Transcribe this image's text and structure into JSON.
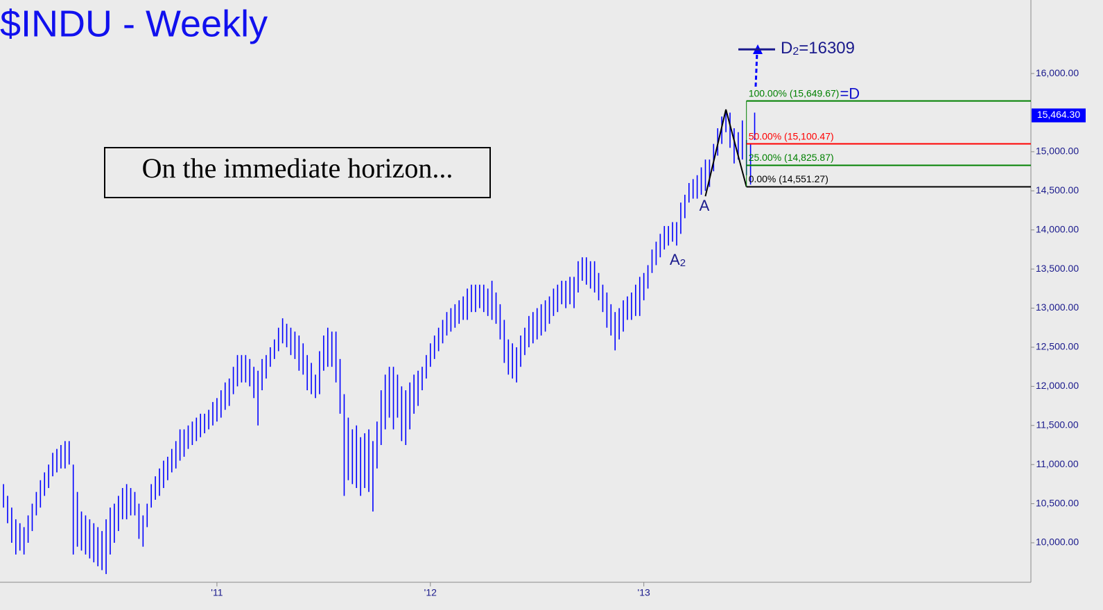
{
  "chart_data": {
    "type": "ohlc",
    "title": "$INDU - Weekly",
    "annotation": "On the immediate horizon...",
    "color": "#0000ff",
    "highs": [
      10750,
      10600,
      10450,
      10300,
      10250,
      10200,
      10350,
      10500,
      10650,
      10800,
      10900,
      11000,
      11150,
      11200,
      11250,
      11300,
      11300,
      11000,
      10650,
      10400,
      10350,
      10300,
      10250,
      10200,
      10150,
      10300,
      10450,
      10500,
      10600,
      10700,
      10750,
      10700,
      10650,
      10500,
      10350,
      10500,
      10750,
      10850,
      10950,
      11050,
      11100,
      11200,
      11300,
      11450,
      11450,
      11500,
      11550,
      11600,
      11650,
      11650,
      11700,
      11800,
      11850,
      11950,
      12050,
      12100,
      12250,
      12400,
      12400,
      12400,
      12350,
      12250,
      12200,
      12350,
      12400,
      12500,
      12600,
      12750,
      12870,
      12800,
      12750,
      12700,
      12650,
      12550,
      12400,
      12300,
      12150,
      12450,
      12650,
      12750,
      12700,
      12700,
      12350,
      11900,
      11600,
      11450,
      11500,
      11350,
      11400,
      11450,
      11300,
      11550,
      11950,
      12150,
      12250,
      12250,
      12150,
      12000,
      11950,
      12050,
      12150,
      12200,
      12250,
      12400,
      12550,
      12650,
      12750,
      12850,
      12950,
      13000,
      13050,
      13100,
      13150,
      13250,
      13300,
      13300,
      13300,
      13300,
      13250,
      13350,
      13200,
      13050,
      12850,
      12600,
      12550,
      12500,
      12650,
      12750,
      12900,
      12950,
      13000,
      13050,
      13100,
      13150,
      13250,
      13300,
      13350,
      13350,
      13400,
      13400,
      13600,
      13650,
      13650,
      13600,
      13600,
      13450,
      13300,
      13200,
      13050,
      12950,
      13000,
      13100,
      13150,
      13200,
      13300,
      13400,
      13450,
      13550,
      13750,
      13850,
      13950,
      14050,
      14050,
      14100,
      14100,
      14350,
      14450,
      14600,
      14650,
      14700,
      14800,
      14900,
      14900,
      15100,
      15300,
      15450,
      15540,
      15500,
      15300,
      15250,
      15400,
      15150,
      15100,
      15500
    ],
    "lows": [
      10450,
      10250,
      10000,
      9850,
      9900,
      9850,
      10000,
      10150,
      10350,
      10450,
      10600,
      10700,
      10850,
      10900,
      10950,
      10950,
      11000,
      9850,
      9950,
      9900,
      9850,
      9800,
      9750,
      9700,
      9650,
      9600,
      9850,
      10000,
      10150,
      10300,
      10300,
      10350,
      10350,
      10050,
      9950,
      10200,
      10450,
      10550,
      10600,
      10700,
      10800,
      10900,
      10950,
      11050,
      11100,
      11200,
      11250,
      11300,
      11350,
      11400,
      11450,
      11500,
      11550,
      11600,
      11700,
      11750,
      11900,
      12000,
      12050,
      12050,
      12000,
      11850,
      11500,
      11950,
      12100,
      12250,
      12350,
      12450,
      12550,
      12500,
      12400,
      12350,
      12200,
      12150,
      11950,
      11900,
      11850,
      11900,
      12200,
      12250,
      12250,
      12050,
      11650,
      10600,
      10800,
      10750,
      10700,
      10600,
      10700,
      10650,
      10400,
      10950,
      11250,
      11450,
      11600,
      11450,
      11600,
      11300,
      11250,
      11450,
      11650,
      11750,
      11950,
      12100,
      12250,
      12350,
      12450,
      12550,
      12650,
      12700,
      12750,
      12800,
      12850,
      12850,
      12950,
      12950,
      13000,
      12950,
      12900,
      12850,
      12800,
      12600,
      12300,
      12150,
      12100,
      12050,
      12250,
      12400,
      12500,
      12550,
      12600,
      12650,
      12700,
      12800,
      12900,
      12950,
      13050,
      13000,
      13050,
      13000,
      13200,
      13350,
      13300,
      13250,
      13200,
      13100,
      12950,
      12750,
      12650,
      12460,
      12600,
      12700,
      12850,
      12850,
      12900,
      12900,
      13100,
      13250,
      13450,
      13550,
      13650,
      13750,
      13800,
      13850,
      13800,
      13950,
      14150,
      14350,
      14400,
      14400,
      14450,
      14500,
      14550,
      14750,
      14950,
      15100,
      15250,
      15050,
      14850,
      14900,
      14900,
      14700,
      14580,
      15150
    ],
    "last_price": {
      "value": 15464.3,
      "label": "15,464.30"
    },
    "ylim": [
      9495,
      16940
    ],
    "yticks": [
      {
        "value": 10000,
        "label": "10,000.00"
      },
      {
        "value": 10500,
        "label": "10,500.00"
      },
      {
        "value": 11000,
        "label": "11,000.00"
      },
      {
        "value": 11500,
        "label": "11,500.00"
      },
      {
        "value": 12000,
        "label": "12,000.00"
      },
      {
        "value": 12500,
        "label": "12,500.00"
      },
      {
        "value": 13000,
        "label": "13,000.00"
      },
      {
        "value": 13500,
        "label": "13,500.00"
      },
      {
        "value": 14000,
        "label": "14,000.00"
      },
      {
        "value": 14500,
        "label": "14,500.00"
      },
      {
        "value": 15000,
        "label": "15,000.00"
      },
      {
        "value": 16000,
        "label": "16,000.00"
      }
    ],
    "xlim": [
      -0.85,
      250.3
    ],
    "xticks": [
      {
        "value": 52,
        "label": "'11"
      },
      {
        "value": 104,
        "label": "'12"
      },
      {
        "value": 156,
        "label": "'13"
      }
    ],
    "levels": [
      {
        "label": "100.00% (15,649.67)",
        "value": 15649.67,
        "color": "#008000"
      },
      {
        "label": "50.00% (15,100.47)",
        "value": 15100.47,
        "color": "#ff0000"
      },
      {
        "label": "25.00% (14,825.87)",
        "value": 14825.87,
        "color": "#008000"
      },
      {
        "label": "0.00% (14,551.27)",
        "value": 14551.27,
        "color": "#000000"
      }
    ],
    "level_note": "=D",
    "pattern": [
      {
        "x": 171,
        "y": 14430
      },
      {
        "x": 176,
        "y": 15540
      },
      {
        "x": 181,
        "y": 14551.27
      }
    ],
    "target": {
      "letter": "D",
      "subscript": "2",
      "suffix": "=16309",
      "value": 16309
    },
    "point_a": "A",
    "point_a2": {
      "letter": "A",
      "subscript": "2"
    }
  }
}
